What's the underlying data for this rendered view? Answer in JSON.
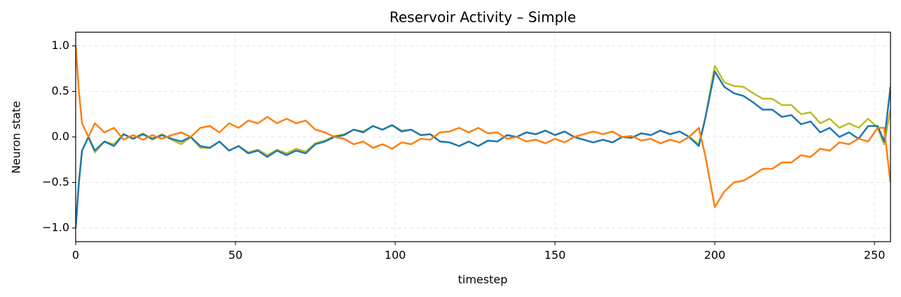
{
  "chart_data": {
    "type": "line",
    "title": "Reservoir Activity – Simple",
    "x_label": "timestep",
    "y_label": "Neuron state",
    "xlim": [
      0,
      255
    ],
    "ylim": [
      -1.15,
      1.15
    ],
    "xticks": [
      0,
      50,
      100,
      150,
      200,
      250
    ],
    "yticks": [
      {
        "value": -1.0,
        "label": "−1.0"
      },
      {
        "value": -0.5,
        "label": "−0.5"
      },
      {
        "value": 0.0,
        "label": "0.0"
      },
      {
        "value": 0.5,
        "label": "0.5"
      },
      {
        "value": 1.0,
        "label": "1.0"
      }
    ],
    "grid": true,
    "x": [
      0,
      1,
      2,
      4,
      6,
      9,
      12,
      15,
      18,
      21,
      24,
      27,
      30,
      33,
      36,
      39,
      42,
      45,
      48,
      51,
      54,
      57,
      60,
      63,
      66,
      69,
      72,
      75,
      78,
      81,
      84,
      87,
      90,
      93,
      96,
      99,
      102,
      105,
      108,
      111,
      114,
      117,
      120,
      123,
      126,
      129,
      132,
      135,
      138,
      141,
      144,
      147,
      150,
      153,
      156,
      159,
      162,
      165,
      168,
      171,
      174,
      177,
      180,
      183,
      186,
      189,
      192,
      195,
      197,
      200,
      203,
      206,
      209,
      212,
      215,
      218,
      221,
      224,
      227,
      230,
      233,
      236,
      239,
      242,
      245,
      248,
      251,
      253,
      255
    ],
    "series": [
      {
        "color": "#bcbd22",
        "values": [
          -1.0,
          -0.5,
          -0.15,
          0.0,
          -0.17,
          -0.05,
          -0.08,
          0.03,
          -0.02,
          0.04,
          -0.03,
          0.03,
          -0.03,
          -0.08,
          0.0,
          -0.12,
          -0.12,
          -0.05,
          -0.15,
          -0.1,
          -0.17,
          -0.14,
          -0.2,
          -0.14,
          -0.18,
          -0.13,
          -0.16,
          -0.07,
          -0.04,
          0.01,
          0.03,
          0.08,
          0.06,
          0.12,
          0.08,
          0.13,
          0.07,
          0.08,
          0.02,
          0.03,
          -0.05,
          -0.06,
          -0.1,
          -0.05,
          -0.1,
          -0.04,
          -0.05,
          0.02,
          0.0,
          0.05,
          0.03,
          0.07,
          0.02,
          0.06,
          0.0,
          -0.03,
          -0.06,
          -0.03,
          -0.06,
          0.0,
          -0.01,
          0.04,
          0.02,
          0.07,
          0.03,
          0.06,
          0.0,
          -0.08,
          0.2,
          0.78,
          0.6,
          0.56,
          0.55,
          0.48,
          0.42,
          0.42,
          0.35,
          0.35,
          0.25,
          0.27,
          0.15,
          0.2,
          0.1,
          0.15,
          0.1,
          0.2,
          0.1,
          -0.08,
          0.3
        ]
      },
      {
        "color": "#1f77b4",
        "values": [
          -1.0,
          -0.5,
          -0.15,
          0.0,
          -0.15,
          -0.05,
          -0.1,
          0.03,
          -0.02,
          0.03,
          -0.02,
          0.02,
          -0.02,
          -0.05,
          0.0,
          -0.1,
          -0.12,
          -0.05,
          -0.15,
          -0.1,
          -0.18,
          -0.15,
          -0.22,
          -0.15,
          -0.2,
          -0.15,
          -0.18,
          -0.08,
          -0.05,
          0.0,
          0.02,
          0.08,
          0.05,
          0.12,
          0.08,
          0.13,
          0.06,
          0.08,
          0.02,
          0.03,
          -0.05,
          -0.06,
          -0.1,
          -0.05,
          -0.1,
          -0.04,
          -0.05,
          0.02,
          0.0,
          0.05,
          0.03,
          0.07,
          0.02,
          0.06,
          0.0,
          -0.03,
          -0.06,
          -0.03,
          -0.06,
          0.0,
          -0.01,
          0.04,
          0.02,
          0.07,
          0.03,
          0.06,
          0.0,
          -0.1,
          0.2,
          0.72,
          0.55,
          0.48,
          0.45,
          0.38,
          0.3,
          0.3,
          0.22,
          0.24,
          0.14,
          0.17,
          0.05,
          0.1,
          0.0,
          0.05,
          -0.02,
          0.12,
          0.12,
          -0.05,
          0.55
        ]
      },
      {
        "color": "#ff7f0e",
        "values": [
          1.0,
          0.5,
          0.15,
          0.0,
          0.15,
          0.05,
          0.1,
          -0.03,
          0.02,
          -0.03,
          0.02,
          -0.02,
          0.02,
          0.05,
          0.0,
          0.1,
          0.12,
          0.05,
          0.15,
          0.1,
          0.18,
          0.15,
          0.22,
          0.15,
          0.2,
          0.15,
          0.18,
          0.08,
          0.05,
          0.0,
          -0.02,
          -0.08,
          -0.05,
          -0.12,
          -0.08,
          -0.13,
          -0.06,
          -0.08,
          -0.02,
          -0.03,
          0.05,
          0.06,
          0.1,
          0.05,
          0.1,
          0.04,
          0.05,
          -0.02,
          0.0,
          -0.05,
          -0.03,
          -0.07,
          -0.02,
          -0.06,
          0.0,
          0.03,
          0.06,
          0.03,
          0.06,
          0.0,
          0.01,
          -0.04,
          -0.02,
          -0.07,
          -0.03,
          -0.06,
          0.0,
          0.1,
          -0.2,
          -0.77,
          -0.6,
          -0.5,
          -0.48,
          -0.42,
          -0.35,
          -0.35,
          -0.28,
          -0.28,
          -0.2,
          -0.22,
          -0.13,
          -0.15,
          -0.06,
          -0.08,
          -0.02,
          -0.05,
          0.1,
          0.1,
          -0.5
        ]
      }
    ]
  }
}
